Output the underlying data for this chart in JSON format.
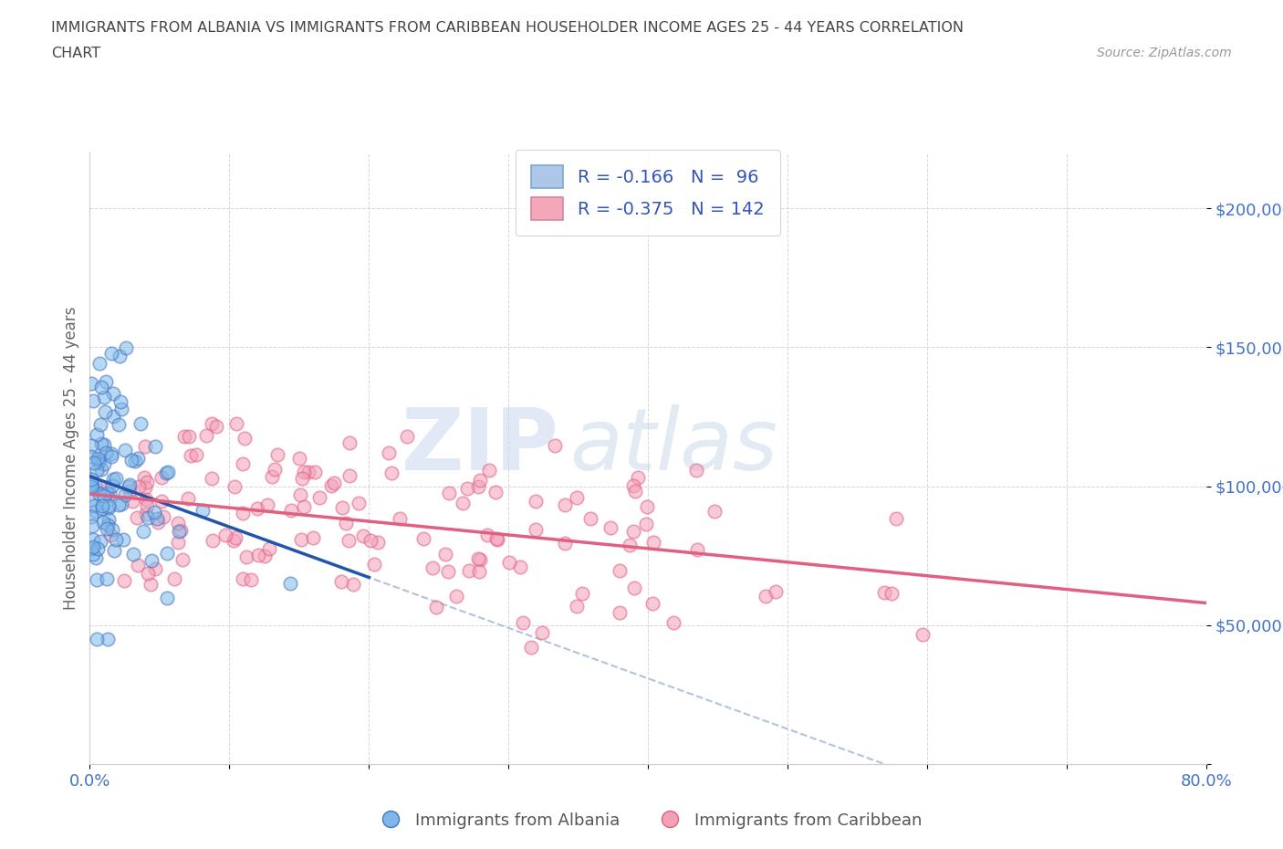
{
  "title_line1": "IMMIGRANTS FROM ALBANIA VS IMMIGRANTS FROM CARIBBEAN HOUSEHOLDER INCOME AGES 25 - 44 YEARS CORRELATION",
  "title_line2": "CHART",
  "source_text": "Source: ZipAtlas.com",
  "ylabel": "Householder Income Ages 25 - 44 years",
  "legend_albania_label": "Immigrants from Albania",
  "legend_caribbean_label": "Immigrants from Caribbean",
  "xlim": [
    0.0,
    0.8
  ],
  "ylim": [
    0,
    220000
  ],
  "yticks": [
    0,
    50000,
    100000,
    150000,
    200000
  ],
  "ytick_labels": [
    "",
    "$50,000",
    "$100,000",
    "$150,000",
    "$200,000"
  ],
  "xticks": [
    0.0,
    0.1,
    0.2,
    0.3,
    0.4,
    0.5,
    0.6,
    0.7,
    0.8
  ],
  "xtick_labels": [
    "0.0%",
    "",
    "",
    "",
    "",
    "",
    "",
    "",
    "80.0%"
  ],
  "watermark_zip": "ZIP",
  "watermark_atlas": "atlas",
  "background_color": "#ffffff",
  "grid_color": "#cccccc",
  "title_color": "#555555",
  "axis_label_color": "#666666",
  "tick_color": "#4472c4",
  "albania_scatter_color": "#7db8e8",
  "albania_edge_color": "#4472c4",
  "caribbean_scatter_color": "#f4a0b8",
  "caribbean_edge_color": "#e06080",
  "albania_line_color": "#2255aa",
  "albania_dash_color": "#aabbdd",
  "caribbean_line_color": "#e06080",
  "albania_R": -0.166,
  "albania_N": 96,
  "caribbean_R": -0.375,
  "caribbean_N": 142,
  "legend_R_color": "#3355bb",
  "legend_box_albania": "#aec6e8",
  "legend_box_caribbean": "#f4a7b9"
}
